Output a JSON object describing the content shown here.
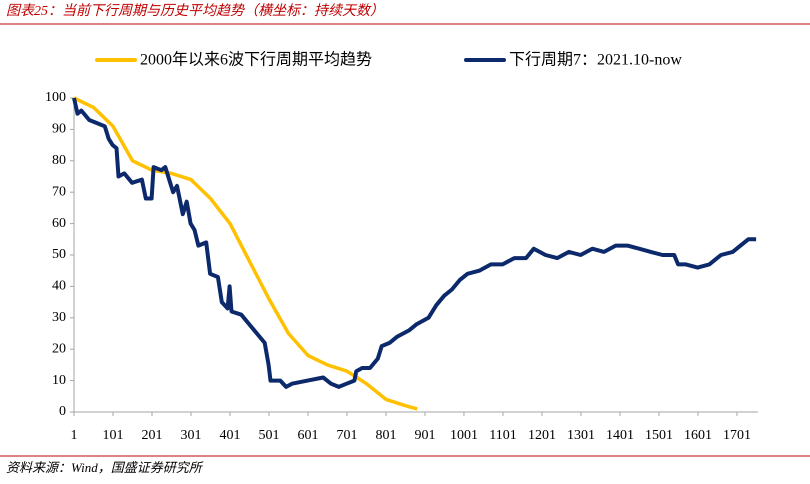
{
  "chart_data": {
    "type": "line",
    "title": "图表25：当前下行周期与历史平均趋势（横坐标：持续天数）",
    "source": "资料来源：Wind，国盛证券研究所",
    "xlim": [
      1,
      1755
    ],
    "ylim": [
      0,
      100
    ],
    "xticks": [
      1,
      101,
      201,
      301,
      401,
      501,
      601,
      701,
      801,
      901,
      1001,
      1101,
      1201,
      1301,
      1401,
      1501,
      1601,
      1701
    ],
    "yticks": [
      0,
      10,
      20,
      30,
      40,
      50,
      60,
      70,
      80,
      90,
      100
    ],
    "series": [
      {
        "name": "2000年以来6波下行周期平均趋势",
        "color": "#ffc000",
        "x": [
          1,
          51,
          101,
          151,
          201,
          251,
          301,
          351,
          401,
          451,
          501,
          551,
          601,
          651,
          701,
          751,
          801,
          851,
          881
        ],
        "values": [
          100,
          97,
          91,
          80,
          77,
          76,
          74,
          68,
          60,
          48,
          36,
          25,
          18,
          15,
          13,
          9,
          4,
          2,
          1
        ]
      },
      {
        "name": "下行周期7：2021.10-now",
        "color": "#0c2a6b",
        "x": [
          1,
          10,
          20,
          40,
          60,
          80,
          90,
          100,
          110,
          115,
          130,
          150,
          175,
          185,
          200,
          205,
          225,
          235,
          245,
          255,
          265,
          280,
          290,
          300,
          310,
          320,
          340,
          350,
          370,
          380,
          395,
          400,
          405,
          430,
          450,
          470,
          490,
          500,
          505,
          530,
          545,
          560,
          600,
          640,
          660,
          680,
          700,
          720,
          725,
          740,
          760,
          780,
          790,
          810,
          830,
          860,
          880,
          910,
          930,
          950,
          970,
          990,
          1010,
          1040,
          1070,
          1100,
          1130,
          1160,
          1180,
          1210,
          1240,
          1270,
          1300,
          1330,
          1360,
          1390,
          1420,
          1450,
          1480,
          1510,
          1540,
          1550,
          1570,
          1600,
          1630,
          1660,
          1690,
          1710,
          1730,
          1750
        ],
        "values": [
          100,
          95,
          96,
          93,
          92,
          91,
          87,
          85,
          84,
          75,
          76,
          73,
          74,
          68,
          68,
          78,
          77,
          78,
          74,
          70,
          72,
          63,
          67,
          60,
          58,
          53,
          54,
          44,
          43,
          35,
          33,
          40,
          32,
          31,
          28,
          25,
          22,
          15,
          10,
          10,
          8,
          9,
          10,
          11,
          9,
          8,
          9,
          10,
          13,
          14,
          14,
          17,
          21,
          22,
          24,
          26,
          28,
          30,
          34,
          37,
          39,
          42,
          44,
          45,
          47,
          47,
          49,
          49,
          52,
          50,
          49,
          51,
          50,
          52,
          51,
          53,
          53,
          52,
          51,
          50,
          50,
          47,
          47,
          46,
          47,
          50,
          51,
          53,
          55,
          55
        ]
      }
    ]
  }
}
